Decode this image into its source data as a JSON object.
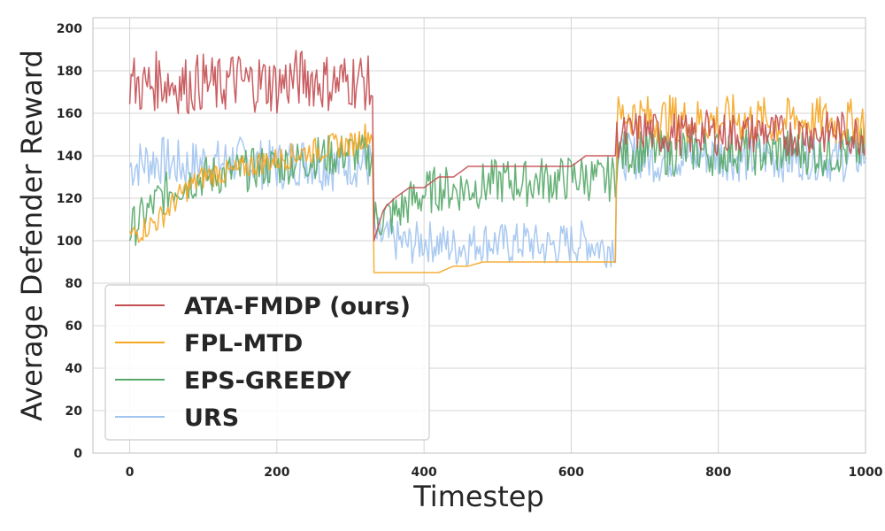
{
  "chart_data": {
    "type": "line",
    "xlabel": "Timestep",
    "ylabel": "Average Defender Reward",
    "xlim": [
      -50,
      1000
    ],
    "ylim": [
      0,
      205
    ],
    "xticks": [
      0,
      200,
      400,
      600,
      800,
      1000
    ],
    "yticks": [
      0,
      20,
      40,
      60,
      80,
      100,
      120,
      140,
      160,
      180,
      200
    ],
    "grid": true,
    "legend_position": "lower-left",
    "series": [
      {
        "name": "ATA-FMDP (ours)",
        "color": "#c44e52",
        "segments": [
          {
            "x": [
              0,
              20,
              40,
              60,
              80,
              100,
              120,
              140,
              160,
              180,
              200,
              220,
              240,
              260,
              280,
              300,
              320,
              330
            ],
            "mean": [
              175,
              172,
              176,
              174,
              173,
              175,
              172,
              176,
              174,
              175,
              173,
              176,
              177,
              175,
              174,
              176,
              175,
              170
            ],
            "noise": 14
          },
          {
            "x": [
              332,
              345,
              360,
              380,
              400,
              420,
              440,
              460,
              480,
              500,
              520,
              540,
              560,
              580,
              600,
              620,
              640,
              660
            ],
            "mean": [
              100,
              115,
              120,
              125,
              125,
              130,
              130,
              135,
              135,
              135,
              135,
              135,
              135,
              135,
              135,
              140,
              140,
              140
            ],
            "noise": 0
          },
          {
            "x": [
              662,
              680,
              700,
              720,
              740,
              760,
              780,
              800,
              820,
              840,
              860,
              880,
              900,
              920,
              940,
              960,
              980,
              1000
            ],
            "mean": [
              148,
              150,
              152,
              150,
              151,
              149,
              152,
              150,
              151,
              150,
              152,
              150,
              149,
              151,
              150,
              152,
              150,
              150
            ],
            "noise": 10
          }
        ]
      },
      {
        "name": "FPL-MTD",
        "color": "#f5a623",
        "segments": [
          {
            "x": [
              0,
              20,
              40,
              60,
              80,
              100,
              120,
              140,
              160,
              180,
              200,
              220,
              240,
              260,
              280,
              300,
              320,
              330
            ],
            "mean": [
              102,
              106,
              110,
              118,
              125,
              130,
              132,
              132,
              135,
              137,
              138,
              140,
              142,
              143,
              145,
              145,
              150,
              150
            ],
            "noise": 6
          },
          {
            "x": [
              332,
              360,
              380,
              400,
              420,
              440,
              460,
              480,
              500,
              520,
              540,
              560,
              580,
              600,
              620,
              640,
              660
            ],
            "mean": [
              85,
              85,
              85,
              85,
              85,
              88,
              88,
              90,
              90,
              90,
              90,
              90,
              90,
              90,
              90,
              90,
              90
            ],
            "noise": 0
          },
          {
            "x": [
              662,
              680,
              700,
              720,
              740,
              760,
              780,
              800,
              820,
              840,
              860,
              880,
              900,
              920,
              940,
              960,
              980,
              1000
            ],
            "mean": [
              158,
              160,
              158,
              157,
              158,
              156,
              157,
              156,
              158,
              156,
              157,
              155,
              157,
              156,
              157,
              155,
              156,
              155
            ],
            "noise": 11
          }
        ]
      },
      {
        "name": "EPS-GREEDY",
        "color": "#55a868",
        "segments": [
          {
            "x": [
              0,
              20,
              40,
              60,
              80,
              100,
              120,
              140,
              160,
              180,
              200,
              220,
              240,
              260,
              280,
              300,
              320,
              330
            ],
            "mean": [
              105,
              112,
              120,
              125,
              128,
              130,
              131,
              132,
              133,
              135,
              135,
              137,
              138,
              140,
              140,
              142,
              140,
              140
            ],
            "noise": 10
          },
          {
            "x": [
              332,
              360,
              380,
              400,
              420,
              440,
              460,
              480,
              500,
              520,
              540,
              560,
              580,
              600,
              620,
              640,
              660
            ],
            "mean": [
              110,
              112,
              118,
              122,
              125,
              124,
              125,
              126,
              128,
              128,
              127,
              129,
              128,
              130,
              130,
              128,
              130
            ],
            "noise": 11
          },
          {
            "x": [
              662,
              680,
              700,
              720,
              740,
              760,
              780,
              800,
              820,
              840,
              860,
              880,
              900,
              920,
              940,
              960,
              980,
              1000
            ],
            "mean": [
              140,
              142,
              143,
              142,
              141,
              143,
              142,
              141,
              143,
              142,
              141,
              142,
              143,
              142,
              141,
              142,
              143,
              142
            ],
            "noise": 11
          }
        ]
      },
      {
        "name": "URS",
        "color": "#a1c4f0",
        "segments": [
          {
            "x": [
              0,
              20,
              40,
              60,
              80,
              100,
              120,
              140,
              160,
              180,
              200,
              220,
              240,
              260,
              280,
              300,
              320,
              330
            ],
            "mean": [
              135,
              137,
              138,
              136,
              135,
              137,
              136,
              138,
              137,
              136,
              135,
              137,
              138,
              136,
              135,
              137,
              136,
              135
            ],
            "noise": 12
          },
          {
            "x": [
              332,
              360,
              380,
              400,
              420,
              440,
              460,
              480,
              500,
              520,
              540,
              560,
              580,
              600,
              620,
              640,
              660
            ],
            "mean": [
              102,
              100,
              98,
              100,
              99,
              97,
              98,
              100,
              99,
              98,
              100,
              97,
              98,
              99,
              100,
              97,
              98
            ],
            "noise": 10
          },
          {
            "x": [
              662,
              680,
              700,
              720,
              740,
              760,
              780,
              800,
              820,
              840,
              860,
              880,
              900,
              920,
              940,
              960,
              980,
              1000
            ],
            "mean": [
              138,
              140,
              139,
              138,
              140,
              139,
              141,
              140,
              139,
              138,
              140,
              139,
              138,
              140,
              139,
              138,
              139,
              140
            ],
            "noise": 11
          }
        ]
      }
    ]
  }
}
